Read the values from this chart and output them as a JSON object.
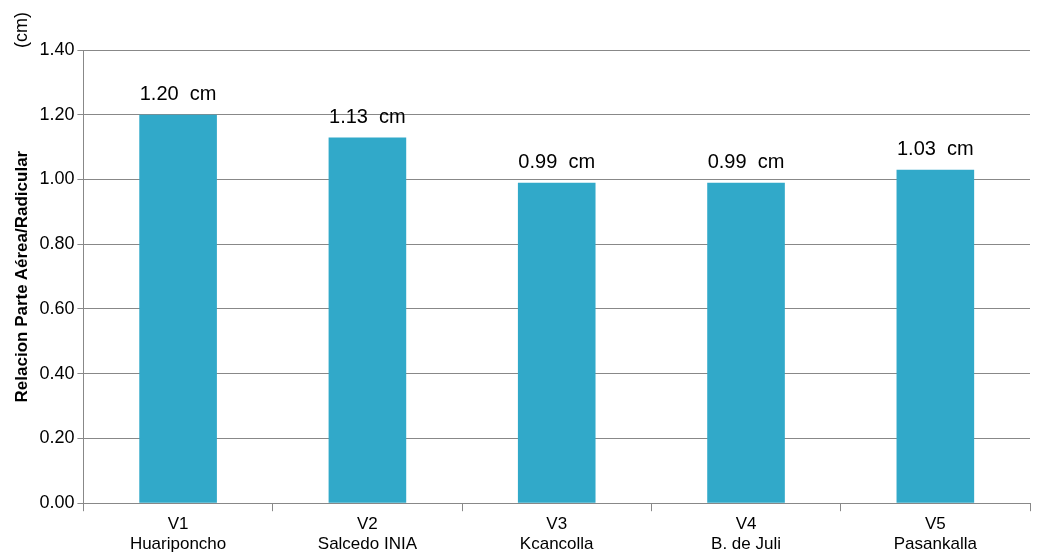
{
  "chart_data": {
    "type": "bar",
    "ylabel": "Relacion Parte Aérea/Radicular",
    "categories": [
      "V1\nHuariponcho",
      "V2\nSalcedo INIA",
      "V3\nKcancolla",
      "V4\nB. de Juli",
      "V5\nPasankalla"
    ],
    "values": [
      1.2,
      1.13,
      0.99,
      0.99,
      1.03
    ],
    "value_labels": [
      "1.20  cm",
      "1.13  cm",
      "0.99  cm",
      "0.99  cm",
      "1.03  cm"
    ],
    "color": "#31a9c9",
    "ylim": [
      0,
      1.4
    ],
    "yticks": [
      {
        "value": 0,
        "label": "0.00"
      },
      {
        "value": 0.2,
        "label": "0.20"
      },
      {
        "value": 0.4,
        "label": "0.40"
      },
      {
        "value": 0.6,
        "label": "0.60"
      },
      {
        "value": 0.8,
        "label": "0.80"
      },
      {
        "value": 1,
        "label": "1.00"
      },
      {
        "value": 1.2,
        "label": "1.20"
      },
      {
        "value": 1.4,
        "label": "1.40"
      }
    ],
    "grid": "y",
    "annotations": [
      "(cm)"
    ]
  }
}
